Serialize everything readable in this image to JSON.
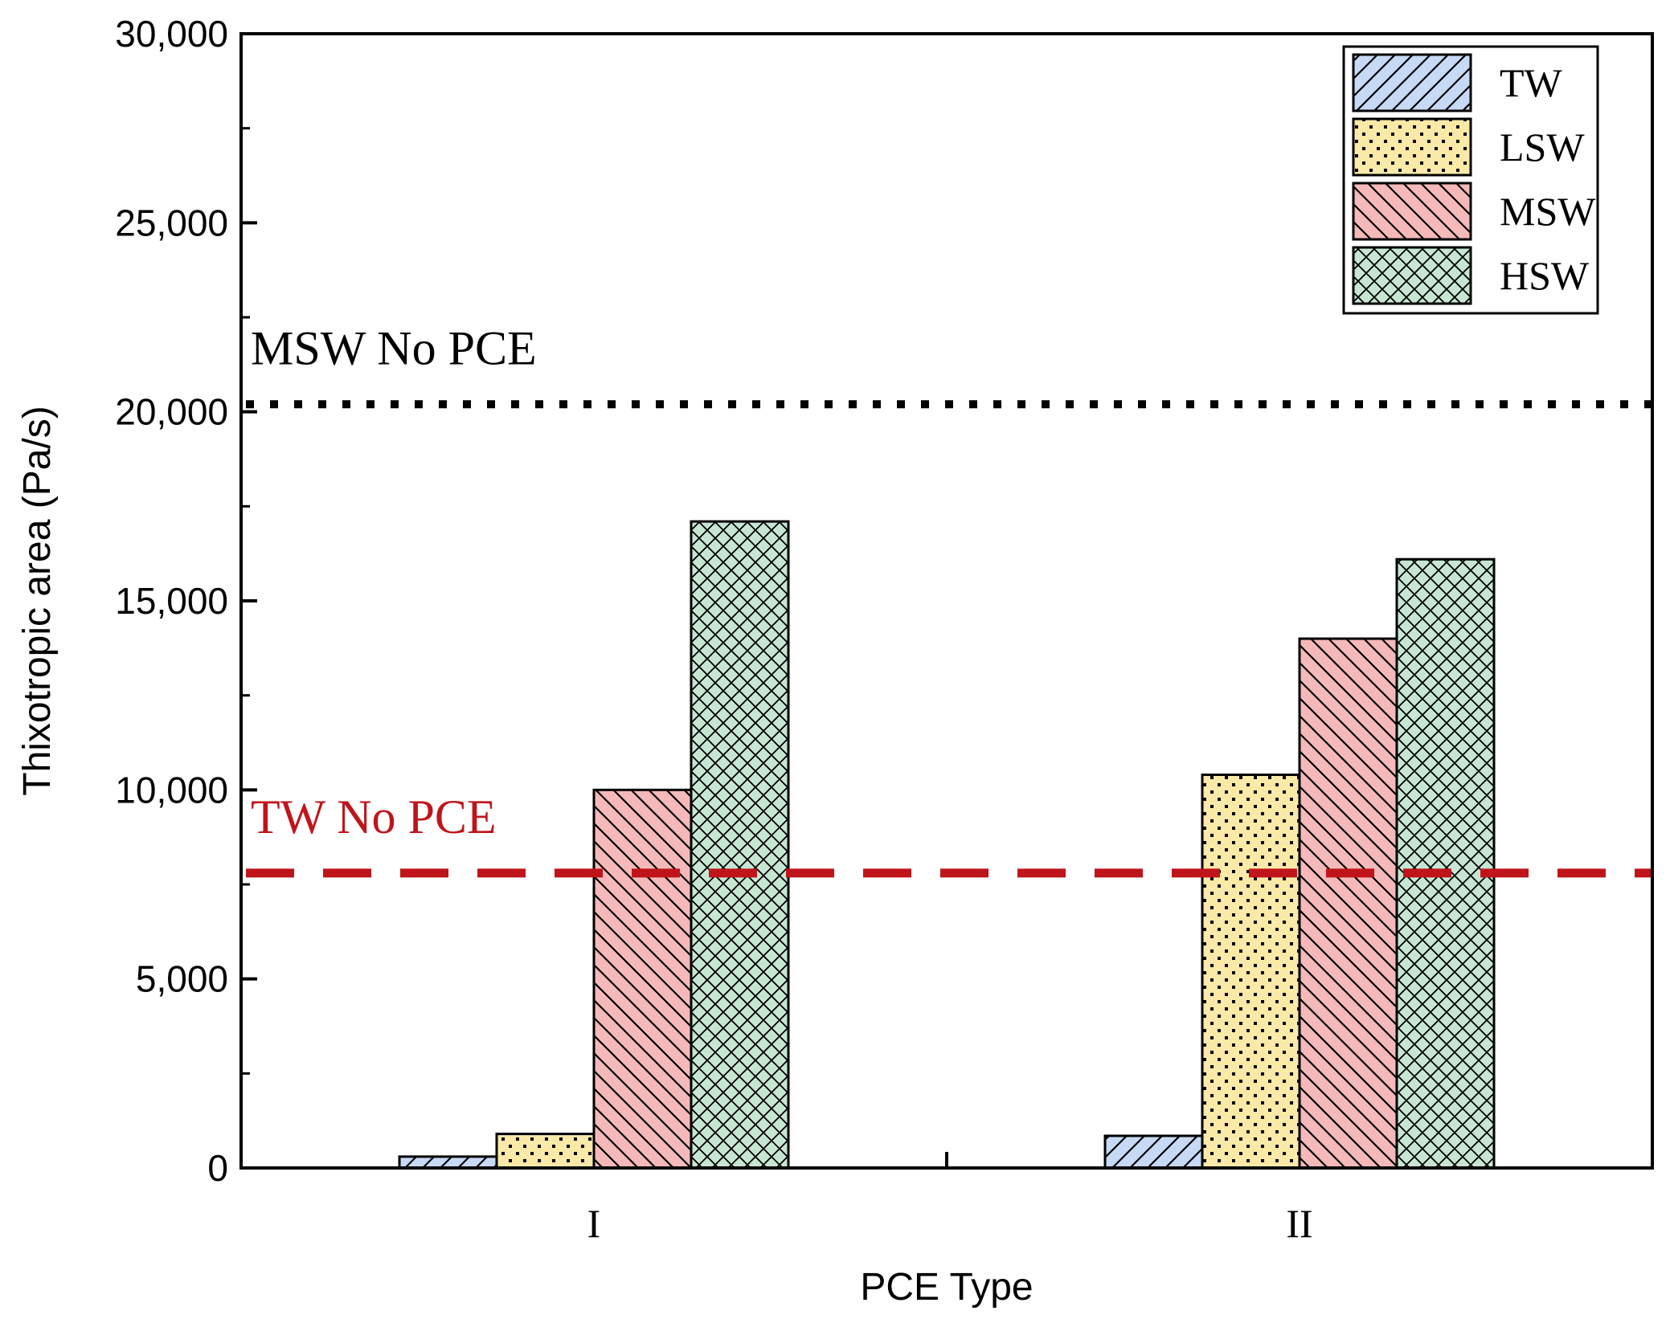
{
  "chart_data": {
    "type": "bar",
    "title": "",
    "xlabel": "PCE Type",
    "ylabel": "Thixotropic area (Pa/s)",
    "categories": [
      "I",
      "II"
    ],
    "ylim": [
      0,
      30000
    ],
    "yticks": [
      0,
      5000,
      10000,
      15000,
      20000,
      25000,
      30000
    ],
    "ytick_labels": [
      "0",
      "5,000",
      "10,000",
      "15,000",
      "20,000",
      "25,000",
      "30,000"
    ],
    "series": [
      {
        "name": "TW",
        "values": [
          300,
          850
        ],
        "color": "#c6d9f5",
        "pattern": "diagonal-up"
      },
      {
        "name": "LSW",
        "values": [
          900,
          10400
        ],
        "color": "#fbe9a8",
        "pattern": "dots"
      },
      {
        "name": "MSW",
        "values": [
          10000,
          14000
        ],
        "color": "#f5b9b9",
        "pattern": "diagonal-down"
      },
      {
        "name": "HSW",
        "values": [
          17100,
          16100
        ],
        "color": "#c6e6d3",
        "pattern": "crosshatch"
      }
    ],
    "reference_lines": [
      {
        "label": "MSW No PCE",
        "value": 20200,
        "color": "#000000",
        "style": "dotted"
      },
      {
        "label": "TW No PCE",
        "value": 7800,
        "color": "#c0141b",
        "style": "dashed"
      }
    ],
    "legend": {
      "position": "top-right"
    },
    "grid": false
  }
}
